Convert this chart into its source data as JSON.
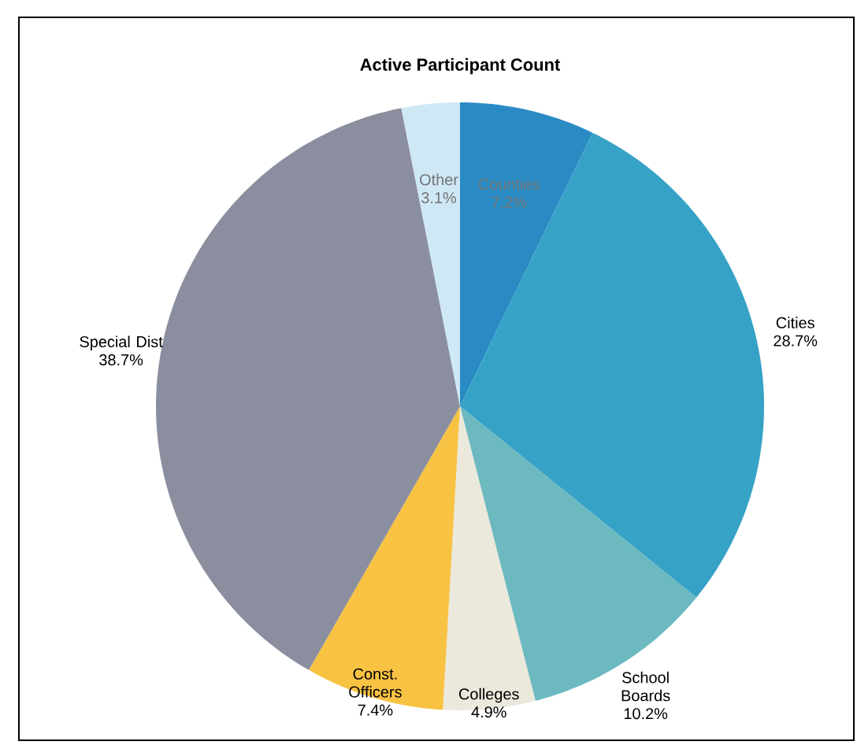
{
  "chart_data": {
    "type": "pie",
    "title": "Active Participant Count",
    "categories": [
      "Counties",
      "Cities",
      "School Boards",
      "Colleges",
      "Const. Officers",
      "Special Dist",
      "Other"
    ],
    "values": [
      7.2,
      28.7,
      10.2,
      4.9,
      7.4,
      38.7,
      3.1
    ],
    "value_labels": [
      "7.2%",
      "28.7%",
      "10.2%",
      "4.9%",
      "7.4%",
      "38.7%",
      "3.1%"
    ],
    "colors": [
      "#2a8bc4",
      "#36a2c6",
      "#6cb9c0",
      "#ebe8dc",
      "#f8c243",
      "#8a8e9e",
      "#cfe8f6"
    ]
  }
}
